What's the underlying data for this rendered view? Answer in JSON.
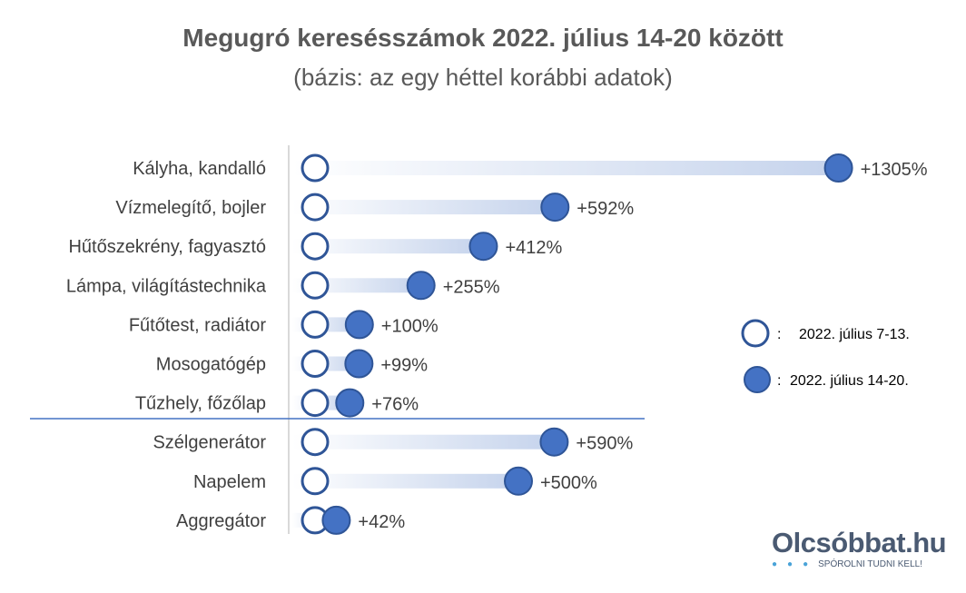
{
  "chart_data": {
    "type": "dumbbell",
    "title": "Megugró keresésszámok 2022. július 14-20 között",
    "subtitle": "(bázis: az egy héttel korábbi adatok)",
    "categories": [
      "Kályha, kandalló",
      "Vízmelegítő, bojler",
      "Hűtőszekrény, fagyasztó",
      "Lámpa, világítástechnika",
      "Fűtőtest, radiátor",
      "Mosogatógép",
      "Tűzhely, főzőlap",
      "Szélgenerátor",
      "Napelem",
      "Aggregátor"
    ],
    "values": [
      1305,
      592,
      412,
      255,
      100,
      99,
      76,
      590,
      500,
      42
    ],
    "labels": [
      "+1305%",
      "+592%",
      "+412%",
      "+255%",
      "+100%",
      "+99%",
      "+76%",
      "+590%",
      "+500%",
      "+42%"
    ],
    "group_separator_after_index": 6,
    "legend": [
      {
        "name": "2022. július 7-13.",
        "marker": "hollow-circle"
      },
      {
        "name": "2022. július 14-20.",
        "marker": "filled-circle"
      }
    ],
    "legend_separator": ":",
    "legend_position": "right",
    "colors": {
      "filled": "#4472c4",
      "outline": "#2f5597",
      "bar": "#c5d3ec",
      "text": "#404040",
      "title": "#595959"
    }
  },
  "logo": {
    "name": "Olcsóbbat.hu",
    "tagline": "SPÓROLNI TUDNI KELL!"
  }
}
